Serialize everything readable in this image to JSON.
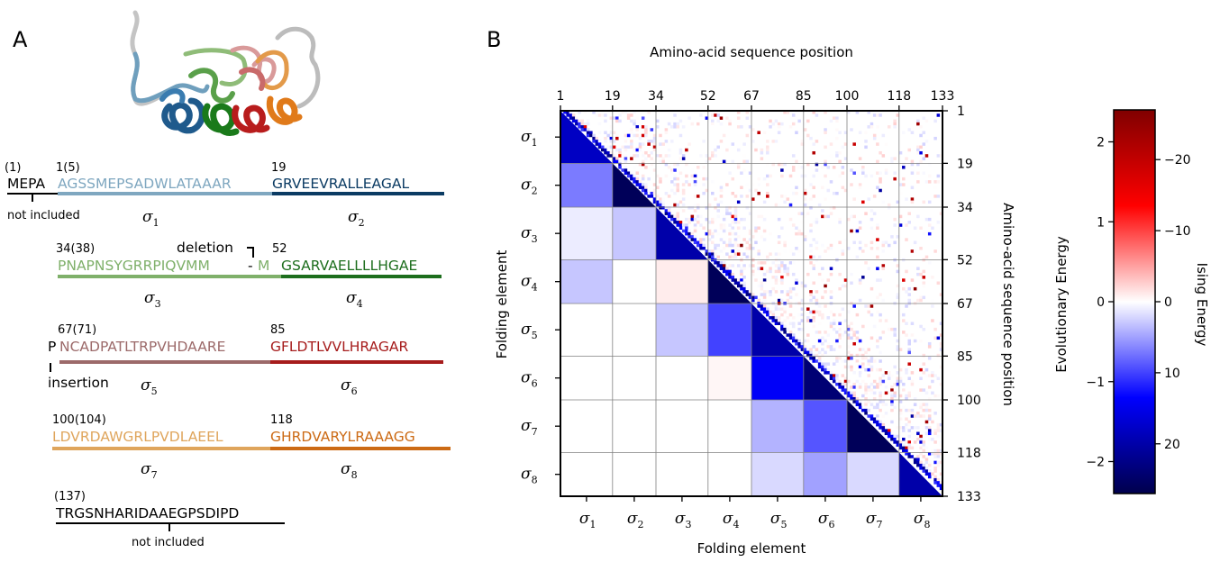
{
  "panel_a": {
    "label": "A",
    "rows": [
      {
        "prefix": "MEPA",
        "prefix_num": "(1)",
        "prefix_note": "not included",
        "left_num": "1(5)",
        "left_seq": "AGSSMEPSADWLATAAAR",
        "left_sigma": "σ",
        "left_sub": "1",
        "right_num": "19",
        "right_seq": "GRVEEVRALLEAGAL",
        "right_sigma": "σ",
        "right_sub": "2"
      },
      {
        "left_num": "34(38)",
        "left_seq": "PNAPNSYGRRPIQVMM",
        "dash": "-",
        "m": "M",
        "note": "deletion",
        "left_sigma": "σ",
        "left_sub": "3",
        "right_num": "52",
        "right_seq": "GSARVAELLLLHGAE",
        "right_sigma": "σ",
        "right_sub": "4"
      },
      {
        "prefix": "P",
        "prefix_note": "insertion",
        "left_num": "67(71)",
        "left_seq": "NCADPATLTRPVHDAARE",
        "left_sigma": "σ",
        "left_sub": "5",
        "right_num": "85",
        "right_seq": "GFLDTLVVLHRAGAR",
        "right_sigma": "σ",
        "right_sub": "6"
      },
      {
        "left_num": "100(104)",
        "left_seq": "LDVRDAWGRLPVDLAEEL",
        "left_sigma": "σ",
        "left_sub": "7",
        "right_num": "118",
        "right_seq": "GHRDVARYLRAAAGG",
        "right_sigma": "σ",
        "right_sub": "8"
      },
      {
        "left_num": "(137)",
        "left_seq": "TRGSNHARIDAAEGPSDIPD",
        "note": "not included"
      }
    ],
    "colors": {
      "s1": "#7fa7c0",
      "s2": "#0b3b63",
      "s3": "#7fb06a",
      "s4": "#1d6e1d",
      "s5": "#9c6a6a",
      "s6": "#a61c1c",
      "s7": "#dfa55c",
      "s8": "#cc6a14"
    }
  },
  "panel_b": {
    "label": "B",
    "title_top": "Amino-acid sequence position",
    "xlabel": "Folding element",
    "ylabel_left": "Folding element",
    "ylabel_right": "Amino-acid sequence position",
    "colorbar_left_label": "Evolutionary Energy",
    "colorbar_right_label": "Ising Energy"
  },
  "chart_data": {
    "type": "heatmap",
    "sequence_boundaries": [
      1,
      19,
      34,
      52,
      67,
      85,
      100,
      118,
      133
    ],
    "elements": [
      "σ1",
      "σ2",
      "σ3",
      "σ4",
      "σ5",
      "σ6",
      "σ7",
      "σ8"
    ],
    "element_symbol": "σ",
    "element_subs": [
      "1",
      "2",
      "3",
      "4",
      "5",
      "6",
      "7",
      "8"
    ],
    "ising_energy_lower_triangle": [
      [
        18,
        null,
        null,
        null,
        null,
        null,
        null,
        null
      ],
      [
        7,
        26,
        null,
        null,
        null,
        null,
        null,
        null
      ],
      [
        1,
        3,
        20,
        null,
        null,
        null,
        null,
        null
      ],
      [
        3,
        0,
        -1,
        26,
        null,
        null,
        null,
        null
      ],
      [
        0,
        0,
        3,
        10,
        20,
        null,
        null,
        null
      ],
      [
        0,
        0,
        0,
        -0.5,
        14,
        24,
        null,
        null
      ],
      [
        0,
        0,
        0,
        0,
        4,
        9,
        26,
        null
      ],
      [
        0,
        0,
        0,
        0,
        2,
        5,
        2,
        20
      ]
    ],
    "colorbar_evolutionary": {
      "min": -2.4,
      "max": 2.4,
      "ticks": [
        "2",
        "1",
        "0",
        "−1",
        "−2"
      ]
    },
    "colorbar_ising": {
      "min": -27,
      "max": 27,
      "ticks": [
        "−20",
        "−10",
        "0",
        "10",
        "20"
      ]
    },
    "colormap": "seismic (blue negative evolutionary / positive Ising, red opposite)"
  }
}
